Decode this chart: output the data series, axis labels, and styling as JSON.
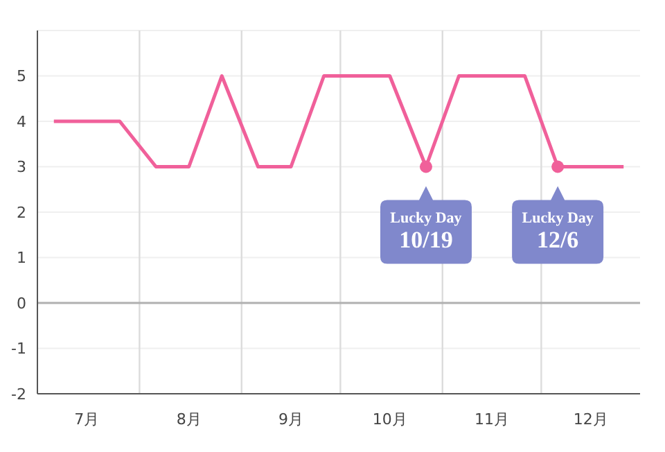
{
  "chart_data": {
    "type": "line",
    "x": [
      "--07-06",
      "--07-16",
      "--07-26",
      "--08-06",
      "--08-16",
      "--08-26",
      "--09-06",
      "--09-16",
      "--09-26",
      "--10-06",
      "--10-16",
      "--10-27",
      "--11-06",
      "--11-16",
      "--11-26",
      "--12-06",
      "--12-16",
      "--12-26"
    ],
    "series": [
      {
        "color": "#f0609a",
        "values": [
          4,
          4,
          4,
          3,
          3,
          5,
          3,
          3,
          5,
          5,
          5,
          3,
          5,
          5,
          5,
          3,
          3,
          3
        ]
      }
    ],
    "xlim": [
      "--07-01",
      "--12-31"
    ],
    "xticks": [
      {
        "value": "--07-16",
        "label": "7月"
      },
      {
        "value": "--08-01",
        "label": null
      },
      {
        "value": "--08-16",
        "label": "8月"
      },
      {
        "value": "--09-01",
        "label": null
      },
      {
        "value": "--09-16",
        "label": "9月"
      },
      {
        "value": "--10-01",
        "label": null
      },
      {
        "value": "--10-16",
        "label": "10月"
      },
      {
        "value": "--11-01",
        "label": null
      },
      {
        "value": "--11-16",
        "label": "11月"
      },
      {
        "value": "--12-01",
        "label": null
      },
      {
        "value": "--12-16",
        "label": "12月"
      }
    ],
    "ylim": [
      -2,
      6
    ],
    "yticks": [
      -2,
      -1,
      0,
      1,
      2,
      3,
      4,
      5
    ],
    "grid": true,
    "marker": "none",
    "line_style": "solid",
    "ref_lines": [
      {
        "axis": "y",
        "value": 0,
        "color": "#b0b0b0"
      }
    ],
    "annotations": [
      {
        "text": "Lucky Day\n10/19",
        "x": "--10-27",
        "y": 3
      },
      {
        "text": "Lucky Day\n12/6",
        "x": "--12-06",
        "y": 3
      }
    ]
  }
}
